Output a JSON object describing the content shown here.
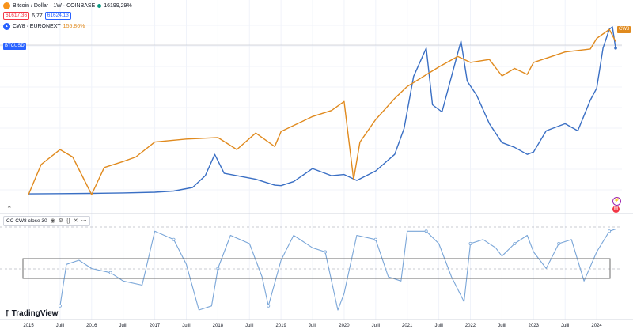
{
  "legend": {
    "main_symbol": "Bitcoin / Dollar · 1W · COINBASE",
    "main_change": "16199,29%",
    "ohlc_a": "61617,36",
    "ohlc_b": "6,77",
    "ohlc_c": "61624,13",
    "second_symbol": "CW8 · EURONEXT",
    "second_change": "155,86%"
  },
  "series_pills": {
    "btc_price_tag": "BTCUSD",
    "cw8_tag": "CW8"
  },
  "indicator": {
    "name": "CC CW8 close 30"
  },
  "brand": "TradingView",
  "x_axis_labels": [
    {
      "text": "2015",
      "year": 2015.0
    },
    {
      "text": "Juill",
      "year": 2015.5
    },
    {
      "text": "2016",
      "year": 2016.0
    },
    {
      "text": "Juill",
      "year": 2016.5
    },
    {
      "text": "2017",
      "year": 2017.0
    },
    {
      "text": "Juill",
      "year": 2017.5
    },
    {
      "text": "2018",
      "year": 2018.0
    },
    {
      "text": "Juill",
      "year": 2018.5
    },
    {
      "text": "2019",
      "year": 2019.0
    },
    {
      "text": "Juill",
      "year": 2019.5
    },
    {
      "text": "2020",
      "year": 2020.0
    },
    {
      "text": "Juill",
      "year": 2020.5
    },
    {
      "text": "2021",
      "year": 2021.0
    },
    {
      "text": "Juill",
      "year": 2021.5
    },
    {
      "text": "2022",
      "year": 2022.0
    },
    {
      "text": "Juill",
      "year": 2022.5
    },
    {
      "text": "2023",
      "year": 2023.0
    },
    {
      "text": "Juill",
      "year": 2023.5
    },
    {
      "text": "2024",
      "year": 2024.0
    }
  ],
  "colors": {
    "btc": "#3a6fc4",
    "cw8": "#e08a1e",
    "indicator": "#7aa6d8",
    "grid": "#f0f3fa",
    "box": "#6b6b6b"
  },
  "chart_data": [
    {
      "type": "line",
      "title": "",
      "series": [
        {
          "name": "Bitcoin / Dollar · 1W · COINBASE",
          "x": [
            2015.0,
            2015.5,
            2016.0,
            2016.5,
            2017.0,
            2017.3,
            2017.6,
            2017.8,
            2017.95,
            2018.1,
            2018.3,
            2018.6,
            2018.9,
            2019.0,
            2019.2,
            2019.5,
            2019.8,
            2020.0,
            2020.2,
            2020.5,
            2020.8,
            2020.95,
            2021.1,
            2021.3,
            2021.4,
            2021.55,
            2021.7,
            2021.85,
            2021.95,
            2022.1,
            2022.3,
            2022.5,
            2022.7,
            2022.9,
            2023.0,
            2023.2,
            2023.5,
            2023.7,
            2023.9,
            2024.0,
            2024.1,
            2024.2,
            2024.25,
            2024.3
          ],
          "values": [
            0.3,
            0.4,
            0.5,
            0.7,
            1.0,
            1.5,
            3.0,
            8.0,
            17.0,
            9.0,
            8.0,
            6.5,
            4.0,
            3.8,
            5.5,
            11.0,
            8.0,
            8.5,
            6.0,
            10.0,
            17.0,
            28.0,
            50.0,
            62.0,
            38.0,
            35.0,
            50.0,
            65.0,
            48.0,
            42.0,
            30.0,
            22.0,
            20.0,
            17.0,
            18.0,
            27.0,
            30.0,
            27.0,
            40.0,
            45.0,
            62.0,
            70.0,
            71.0,
            62.0
          ]
        },
        {
          "name": "CW8 · EURONEXT",
          "x": [
            2015.0,
            2015.2,
            2015.5,
            2015.7,
            2016.0,
            2016.2,
            2016.5,
            2016.7,
            2017.0,
            2017.5,
            2018.0,
            2018.3,
            2018.6,
            2018.9,
            2019.0,
            2019.5,
            2019.8,
            2020.0,
            2020.15,
            2020.25,
            2020.5,
            2020.8,
            2021.0,
            2021.5,
            2021.8,
            2022.0,
            2022.3,
            2022.5,
            2022.7,
            2022.9,
            2023.0,
            2023.5,
            2023.9,
            2024.0,
            2024.2,
            2024.3
          ],
          "values": [
            0,
            20,
            30,
            25,
            0,
            18,
            22,
            25,
            35,
            37,
            38,
            30,
            41,
            32,
            42,
            52,
            56,
            62,
            10,
            35,
            50,
            64,
            72,
            85,
            92,
            88,
            90,
            79,
            84,
            80,
            88,
            95,
            97,
            104,
            110,
            102
          ]
        }
      ]
    },
    {
      "type": "line",
      "title": "CC CW8 close 30",
      "series": [
        {
          "name": "CC CW8 close 30",
          "x": [
            2015.5,
            2015.6,
            2015.8,
            2016.0,
            2016.3,
            2016.5,
            2016.8,
            2017.0,
            2017.3,
            2017.5,
            2017.7,
            2017.9,
            2018.0,
            2018.2,
            2018.5,
            2018.7,
            2018.8,
            2019.0,
            2019.2,
            2019.5,
            2019.7,
            2019.9,
            2020.0,
            2020.2,
            2020.5,
            2020.7,
            2020.9,
            2021.0,
            2021.3,
            2021.5,
            2021.7,
            2021.9,
            2022.0,
            2022.2,
            2022.4,
            2022.5,
            2022.7,
            2022.9,
            2023.0,
            2023.2,
            2023.4,
            2023.6,
            2023.8,
            2024.0,
            2024.2,
            2024.3
          ],
          "values": [
            -0.9,
            0.1,
            0.2,
            0.0,
            -0.1,
            -0.3,
            -0.4,
            0.9,
            0.7,
            0.1,
            -1.0,
            -0.9,
            0.0,
            0.8,
            0.6,
            -0.2,
            -0.9,
            0.2,
            0.8,
            0.5,
            0.4,
            -1.0,
            -0.6,
            0.8,
            0.7,
            -0.2,
            -0.3,
            0.9,
            0.9,
            0.6,
            -0.2,
            -0.8,
            0.6,
            0.7,
            0.5,
            0.3,
            0.6,
            0.8,
            0.4,
            0.0,
            0.6,
            0.7,
            -0.3,
            0.4,
            0.9,
            0.95
          ]
        }
      ]
    }
  ]
}
